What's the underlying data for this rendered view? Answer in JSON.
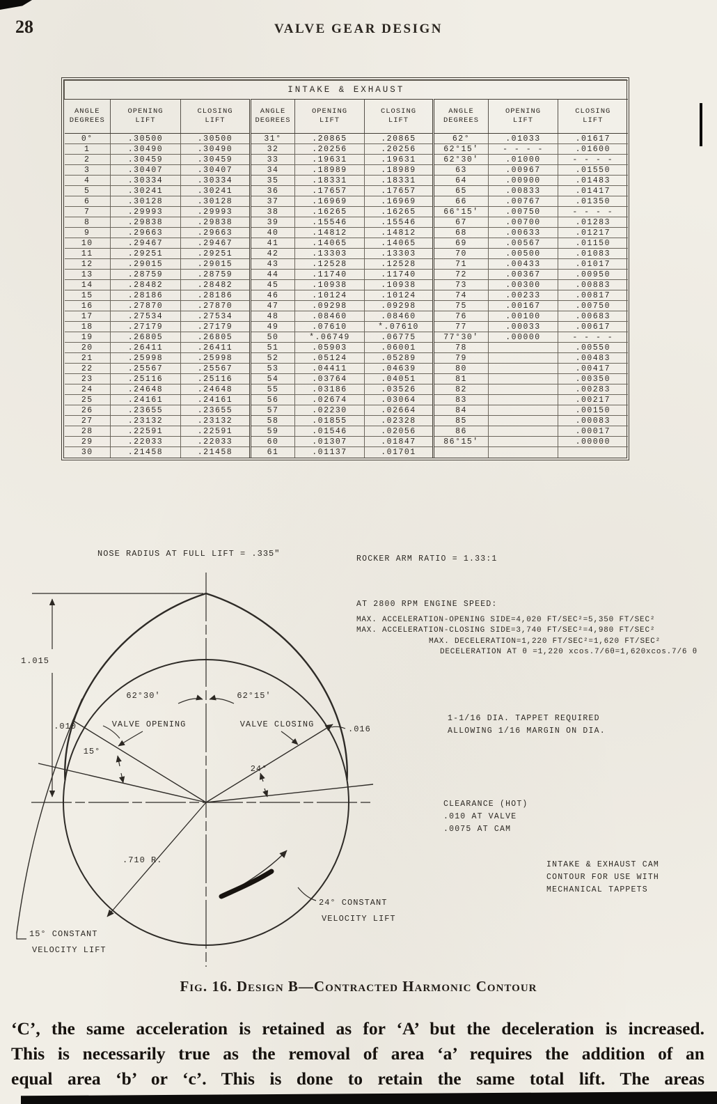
{
  "page": {
    "number": "28",
    "running_title": "VALVE GEAR DESIGN"
  },
  "table": {
    "title": "INTAKE & EXHAUST",
    "headers": [
      "ANGLE\nDEGREES",
      "OPENING\nLIFT",
      "CLOSING\nLIFT"
    ],
    "groups": [
      {
        "rows": [
          [
            "0°",
            ".30500",
            ".30500"
          ],
          [
            "1",
            ".30490",
            ".30490"
          ],
          [
            "2",
            ".30459",
            ".30459"
          ],
          [
            "3",
            ".30407",
            ".30407"
          ],
          [
            "4",
            ".30334",
            ".30334"
          ],
          [
            "5",
            ".30241",
            ".30241"
          ],
          [
            "6",
            ".30128",
            ".30128"
          ],
          [
            "7",
            ".29993",
            ".29993"
          ],
          [
            "8",
            ".29838",
            ".29838"
          ],
          [
            "9",
            ".29663",
            ".29663"
          ],
          [
            "10",
            ".29467",
            ".29467"
          ],
          [
            "11",
            ".29251",
            ".29251"
          ],
          [
            "12",
            ".29015",
            ".29015"
          ],
          [
            "13",
            ".28759",
            ".28759"
          ],
          [
            "14",
            ".28482",
            ".28482"
          ],
          [
            "15",
            ".28186",
            ".28186"
          ],
          [
            "16",
            ".27870",
            ".27870"
          ],
          [
            "17",
            ".27534",
            ".27534"
          ],
          [
            "18",
            ".27179",
            ".27179"
          ],
          [
            "19",
            ".26805",
            ".26805"
          ],
          [
            "20",
            ".26411",
            ".26411"
          ],
          [
            "21",
            ".25998",
            ".25998"
          ],
          [
            "22",
            ".25567",
            ".25567"
          ],
          [
            "23",
            ".25116",
            ".25116"
          ],
          [
            "24",
            ".24648",
            ".24648"
          ],
          [
            "25",
            ".24161",
            ".24161"
          ],
          [
            "26",
            ".23655",
            ".23655"
          ],
          [
            "27",
            ".23132",
            ".23132"
          ],
          [
            "28",
            ".22591",
            ".22591"
          ],
          [
            "29",
            ".22033",
            ".22033"
          ],
          [
            "30",
            ".21458",
            ".21458"
          ]
        ]
      },
      {
        "rows": [
          [
            "31°",
            ".20865",
            ".20865"
          ],
          [
            "32",
            ".20256",
            ".20256"
          ],
          [
            "33",
            ".19631",
            ".19631"
          ],
          [
            "34",
            ".18989",
            ".18989"
          ],
          [
            "35",
            ".18331",
            ".18331"
          ],
          [
            "36",
            ".17657",
            ".17657"
          ],
          [
            "37",
            ".16969",
            ".16969"
          ],
          [
            "38",
            ".16265",
            ".16265"
          ],
          [
            "39",
            ".15546",
            ".15546"
          ],
          [
            "40",
            ".14812",
            ".14812"
          ],
          [
            "41",
            ".14065",
            ".14065"
          ],
          [
            "42",
            ".13303",
            ".13303"
          ],
          [
            "43",
            ".12528",
            ".12528"
          ],
          [
            "44",
            ".11740",
            ".11740"
          ],
          [
            "45",
            ".10938",
            ".10938"
          ],
          [
            "46",
            ".10124",
            ".10124"
          ],
          [
            "47",
            ".09298",
            ".09298"
          ],
          [
            "48",
            ".08460",
            ".08460"
          ],
          [
            "49",
            ".07610",
            "*.07610"
          ],
          [
            "50",
            "*.06749",
            ".06775"
          ],
          [
            "51",
            ".05903",
            ".06001"
          ],
          [
            "52",
            ".05124",
            ".05289"
          ],
          [
            "53",
            ".04411",
            ".04639"
          ],
          [
            "54",
            ".03764",
            ".04051"
          ],
          [
            "55",
            ".03186",
            ".03526"
          ],
          [
            "56",
            ".02674",
            ".03064"
          ],
          [
            "57",
            ".02230",
            ".02664"
          ],
          [
            "58",
            ".01855",
            ".02328"
          ],
          [
            "59",
            ".01546",
            ".02056"
          ],
          [
            "60",
            ".01307",
            ".01847"
          ],
          [
            "61",
            ".01137",
            ".01701"
          ]
        ]
      },
      {
        "rows": [
          [
            "62°",
            ".01033",
            ".01617"
          ],
          [
            "62°15'",
            "- - - -",
            ".01600"
          ],
          [
            "62°30'",
            ".01000",
            "- - - -"
          ],
          [
            "63",
            ".00967",
            ".01550"
          ],
          [
            "64",
            ".00900",
            ".01483"
          ],
          [
            "65",
            ".00833",
            ".01417"
          ],
          [
            "66",
            ".00767",
            ".01350"
          ],
          [
            "66°15'",
            ".00750",
            "- - - -"
          ],
          [
            "67",
            ".00700",
            ".01283"
          ],
          [
            "68",
            ".00633",
            ".01217"
          ],
          [
            "69",
            ".00567",
            ".01150"
          ],
          [
            "70",
            ".00500",
            ".01083"
          ],
          [
            "71",
            ".00433",
            ".01017"
          ],
          [
            "72",
            ".00367",
            ".00950"
          ],
          [
            "73",
            ".00300",
            ".00883"
          ],
          [
            "74",
            ".00233",
            ".00817"
          ],
          [
            "75",
            ".00167",
            ".00750"
          ],
          [
            "76",
            ".00100",
            ".00683"
          ],
          [
            "77",
            ".00033",
            ".00617"
          ],
          [
            "77°30'",
            ".00000",
            "- - - -"
          ],
          [
            "78",
            "",
            ".00550"
          ],
          [
            "79",
            "",
            ".00483"
          ],
          [
            "80",
            "",
            ".00417"
          ],
          [
            "81",
            "",
            ".00350"
          ],
          [
            "82",
            "",
            ".00283"
          ],
          [
            "83",
            "",
            ".00217"
          ],
          [
            "84",
            "",
            ".00150"
          ],
          [
            "85",
            "",
            ".00083"
          ],
          [
            "86",
            "",
            ".00017"
          ],
          [
            "86°15'",
            "",
            ".00000"
          ],
          [
            "",
            "",
            ""
          ]
        ]
      }
    ]
  },
  "figure": {
    "caption": "Fig. 16. Design B—Contracted Harmonic Contour",
    "labels": {
      "nose_radius": "NOSE RADIUS AT FULL LIFT = .335\"",
      "dim_height": "1.015",
      "dim_left": ".010",
      "dim_right": ".016",
      "angle_opening": "62°30'",
      "valve_opening": "VALVE OPENING",
      "angle_closing": "62°15'",
      "valve_closing": "VALVE CLOSING",
      "angle_15": "15°",
      "angle_24": "24°",
      "base_radius": ".710 R.",
      "cv24_1": "24° CONSTANT",
      "cv24_2": "VELOCITY LIFT",
      "cv15_1": "15° CONSTANT",
      "cv15_2": "VELOCITY LIFT"
    },
    "notes": {
      "rocker_ratio": "ROCKER ARM RATIO = 1.33:1",
      "engine_speed_heading": "AT 2800 RPM ENGINE SPEED:",
      "accel_opening": "MAX. ACCELERATION-OPENING SIDE=4,020 FT/SEC²=5,350 FT/SEC²",
      "accel_closing": "MAX. ACCELERATION-CLOSING SIDE=3,740 FT/SEC²=4,980 FT/SEC²",
      "max_decel": "MAX. DECELERATION=1,220 FT/SEC²=1,620 FT/SEC²",
      "decel_at_theta": "DECELERATION AT θ =1,220 xcos.7/6θ=1,620xcos.7/6 θ",
      "tappet_1": "1-1/16 DIA. TAPPET REQUIRED",
      "tappet_2": "ALLOWING 1/16 MARGIN ON DIA.",
      "clearance_1": "CLEARANCE (HOT)",
      "clearance_2": ".010 AT VALVE",
      "clearance_3": ".0075 AT CAM",
      "contour_1": "INTAKE & EXHAUST CAM",
      "contour_2": "CONTOUR FOR USE WITH",
      "contour_3": "MECHANICAL TAPPETS"
    }
  },
  "body": {
    "lines": [
      "‘C’, the same acceleration is retained as for ‘A’ but the deceleration is increased.",
      "This is necessarily true as the removal of area ‘a’ requires the addition of an",
      "equal area ‘b’ or ‘c’.  This is done to retain the same total lift.  The areas"
    ]
  }
}
